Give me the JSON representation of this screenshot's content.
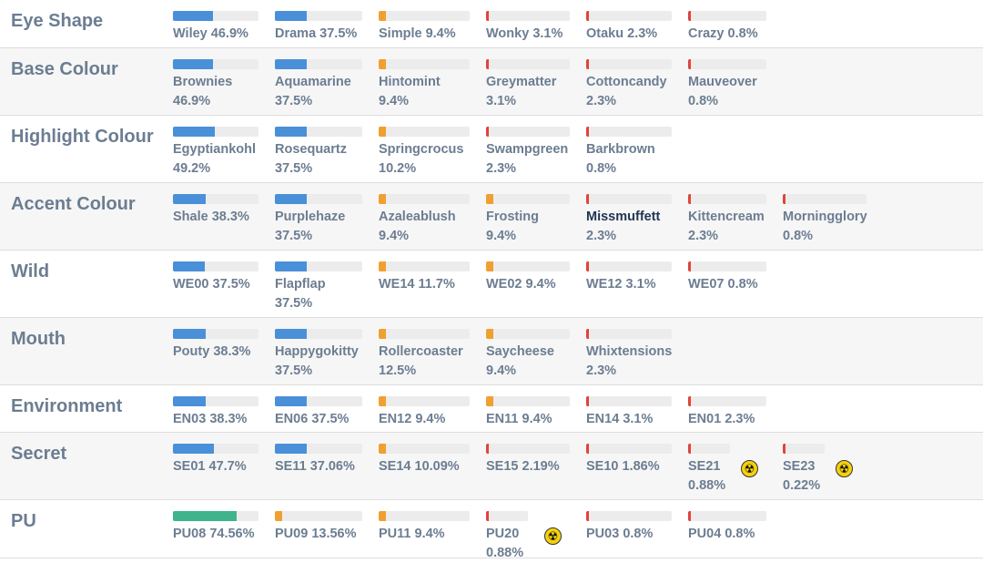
{
  "colors": {
    "blue": "#4a90d9",
    "orange": "#f0a030",
    "red": "#e0443a",
    "green": "#3fb48c",
    "track": "#ececec"
  },
  "rows": [
    {
      "label": "Eye Shape",
      "traits": [
        {
          "name": "Wiley",
          "pct": "46.9%",
          "value": 46.9,
          "color": "blue"
        },
        {
          "name": "Drama",
          "pct": "37.5%",
          "value": 37.5,
          "color": "blue"
        },
        {
          "name": "Simple",
          "pct": "9.4%",
          "value": 9.4,
          "color": "orange"
        },
        {
          "name": "Wonky",
          "pct": "3.1%",
          "value": 3.1,
          "color": "red"
        },
        {
          "name": "Otaku",
          "pct": "2.3%",
          "value": 2.3,
          "color": "red"
        },
        {
          "name": "Crazy",
          "pct": "0.8%",
          "value": 0.8,
          "color": "red"
        }
      ]
    },
    {
      "label": "Base Colour",
      "traits": [
        {
          "name": "Brownies",
          "pct": "46.9%",
          "value": 46.9,
          "color": "blue",
          "wrap": true
        },
        {
          "name": "Aquamarine",
          "pct": "37.5%",
          "value": 37.5,
          "color": "blue",
          "wrap": true
        },
        {
          "name": "Hintomint",
          "pct": "9.4%",
          "value": 9.4,
          "color": "orange",
          "wrap": true
        },
        {
          "name": "Greymatter",
          "pct": "3.1%",
          "value": 3.1,
          "color": "red",
          "wrap": true
        },
        {
          "name": "Cottoncandy",
          "pct": "2.3%",
          "value": 2.3,
          "color": "red",
          "wrap": true
        },
        {
          "name": "Mauveover",
          "pct": "0.8%",
          "value": 0.8,
          "color": "red",
          "wrap": true
        }
      ]
    },
    {
      "label": "Highlight Colour",
      "traits": [
        {
          "name": "Egyptiankohl",
          "pct": "49.2%",
          "value": 49.2,
          "color": "blue",
          "wrap": true
        },
        {
          "name": "Rosequartz",
          "pct": "37.5%",
          "value": 37.5,
          "color": "blue",
          "wrap": true
        },
        {
          "name": "Springcrocus",
          "pct": "10.2%",
          "value": 10.2,
          "color": "orange",
          "wrap": true
        },
        {
          "name": "Swampgreen",
          "pct": "2.3%",
          "value": 2.3,
          "color": "red",
          "wrap": true
        },
        {
          "name": "Barkbrown",
          "pct": "0.8%",
          "value": 0.8,
          "color": "red",
          "wrap": true
        }
      ]
    },
    {
      "label": "Accent Colour",
      "traits": [
        {
          "name": "Shale",
          "pct": "38.3%",
          "value": 38.3,
          "color": "blue"
        },
        {
          "name": "Purplehaze",
          "pct": "37.5%",
          "value": 37.5,
          "color": "blue",
          "wrap": true
        },
        {
          "name": "Azaleablush",
          "pct": "9.4%",
          "value": 9.4,
          "color": "orange",
          "wrap": true
        },
        {
          "name": "Frosting",
          "pct": "9.4%",
          "value": 9.4,
          "color": "orange",
          "wrap": true
        },
        {
          "name": "Missmuffett",
          "pct": "2.3%",
          "value": 2.3,
          "color": "red",
          "wrap": true,
          "dark": true
        },
        {
          "name": "Kittencream",
          "pct": "2.3%",
          "value": 2.3,
          "color": "red",
          "wrap": true
        },
        {
          "name": "Morningglory",
          "pct": "0.8%",
          "value": 0.8,
          "color": "red",
          "wrap": true
        }
      ]
    },
    {
      "label": "Wild",
      "traits": [
        {
          "name": "WE00",
          "pct": "37.5%",
          "value": 37.5,
          "color": "blue"
        },
        {
          "name": "Flapflap",
          "pct": "37.5%",
          "value": 37.5,
          "color": "blue",
          "wrap": true
        },
        {
          "name": "WE14",
          "pct": "11.7%",
          "value": 11.7,
          "color": "orange"
        },
        {
          "name": "WE02",
          "pct": "9.4%",
          "value": 9.4,
          "color": "orange"
        },
        {
          "name": "WE12",
          "pct": "3.1%",
          "value": 3.1,
          "color": "red"
        },
        {
          "name": "WE07",
          "pct": "0.8%",
          "value": 0.8,
          "color": "red"
        }
      ]
    },
    {
      "label": "Mouth",
      "traits": [
        {
          "name": "Pouty",
          "pct": "38.3%",
          "value": 38.3,
          "color": "blue"
        },
        {
          "name": "Happygokitty",
          "pct": "37.5%",
          "value": 37.5,
          "color": "blue",
          "wrap": true
        },
        {
          "name": "Rollercoaster",
          "pct": "12.5%",
          "value": 12.5,
          "color": "orange",
          "wrap": true
        },
        {
          "name": "Saycheese",
          "pct": "9.4%",
          "value": 9.4,
          "color": "orange",
          "wrap": true
        },
        {
          "name": "Whixtensions",
          "pct": "2.3%",
          "value": 2.3,
          "color": "red",
          "wrap": true
        }
      ]
    },
    {
      "label": "Environment",
      "traits": [
        {
          "name": "EN03",
          "pct": "38.3%",
          "value": 38.3,
          "color": "blue"
        },
        {
          "name": "EN06",
          "pct": "37.5%",
          "value": 37.5,
          "color": "blue"
        },
        {
          "name": "EN12",
          "pct": "9.4%",
          "value": 9.4,
          "color": "orange"
        },
        {
          "name": "EN11",
          "pct": "9.4%",
          "value": 9.4,
          "color": "orange"
        },
        {
          "name": "EN14",
          "pct": "3.1%",
          "value": 3.1,
          "color": "red"
        },
        {
          "name": "EN01",
          "pct": "2.3%",
          "value": 2.3,
          "color": "red"
        }
      ]
    },
    {
      "label": "Secret",
      "traits": [
        {
          "name": "SE01",
          "pct": "47.7%",
          "value": 47.7,
          "color": "blue"
        },
        {
          "name": "SE11",
          "pct": "37.06%",
          "value": 37.06,
          "color": "blue"
        },
        {
          "name": "SE14",
          "pct": "10.09%",
          "value": 10.09,
          "color": "orange"
        },
        {
          "name": "SE15",
          "pct": "2.19%",
          "value": 2.19,
          "color": "red"
        },
        {
          "name": "SE10",
          "pct": "1.86%",
          "value": 1.86,
          "color": "red"
        },
        {
          "name": "SE21",
          "pct": "0.88%",
          "value": 0.88,
          "color": "red",
          "wrap": true,
          "hazard": true
        },
        {
          "name": "SE23",
          "pct": "0.22%",
          "value": 0.22,
          "color": "red",
          "wrap": true,
          "hazard": true
        }
      ]
    },
    {
      "label": "PU",
      "traits": [
        {
          "name": "PU08",
          "pct": "74.56%",
          "value": 74.56,
          "color": "green"
        },
        {
          "name": "PU09",
          "pct": "13.56%",
          "value": 13.56,
          "color": "orange"
        },
        {
          "name": "PU11",
          "pct": "9.4%",
          "value": 9.4,
          "color": "orange"
        },
        {
          "name": "PU20",
          "pct": "0.88%",
          "value": 0.88,
          "color": "red",
          "wrap": true,
          "hazard": true
        },
        {
          "name": "PU03",
          "pct": "0.8%",
          "value": 0.8,
          "color": "red"
        },
        {
          "name": "PU04",
          "pct": "0.8%",
          "value": 0.8,
          "color": "red"
        }
      ]
    }
  ]
}
